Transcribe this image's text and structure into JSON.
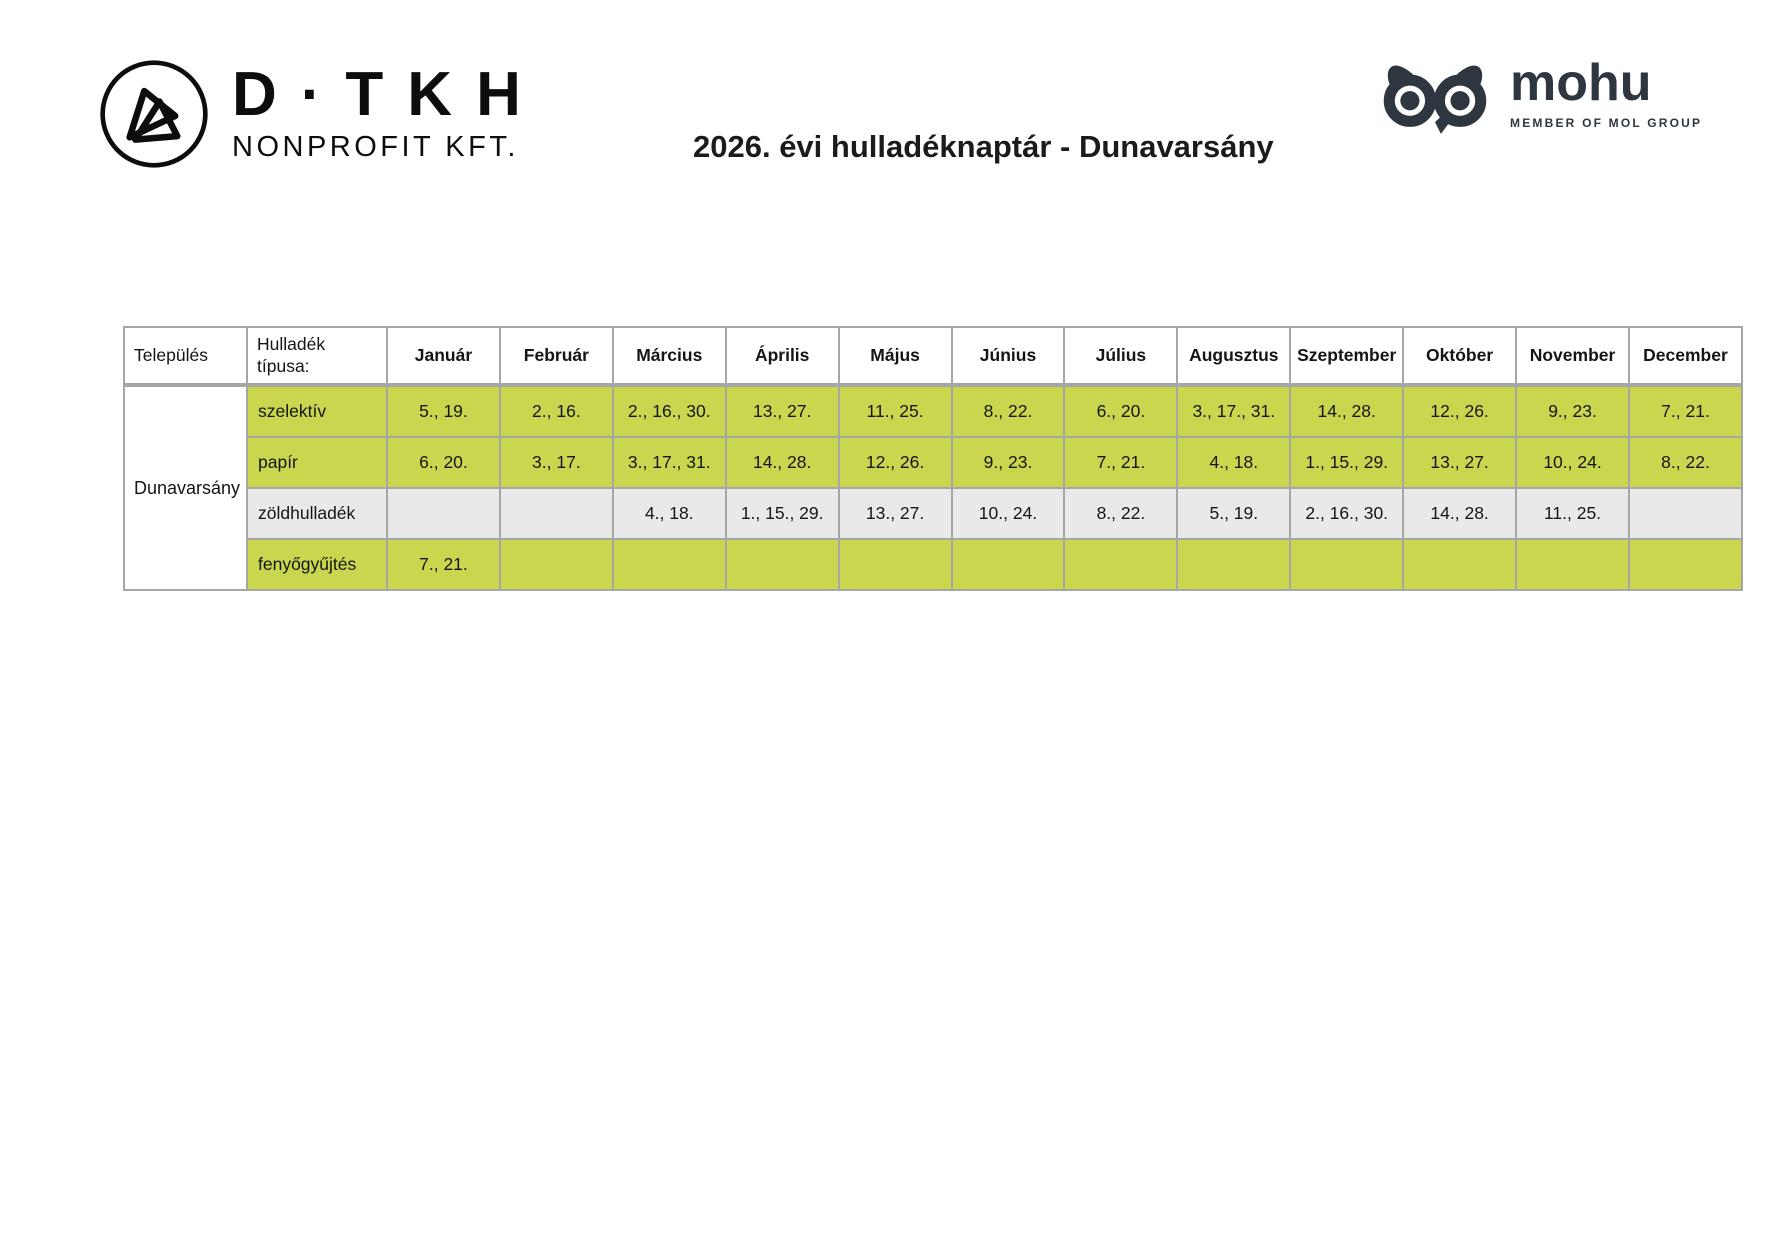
{
  "page": {
    "title": "2026. évi hulladéknaptár - Dunavarsány"
  },
  "branding": {
    "dtkh": {
      "wordmark": "D·TKH",
      "subtitle": "NONPROFIT KFT."
    },
    "mohu": {
      "wordmark": "mohu",
      "tagline": "MEMBER OF MOL GROUP"
    }
  },
  "colors": {
    "accent_green": "#c9d64e",
    "row_gray": "#e9e9e9",
    "grid_border": "#a6a6a6",
    "outer_border": "#8c8c8c",
    "logo_dark": "#2e3640",
    "text": "#151515"
  },
  "table": {
    "settlement_header": "Település",
    "waste_type_header": "Hulladék típusa:",
    "settlement": "Dunavarsány",
    "months": [
      "Január",
      "Február",
      "Március",
      "Április",
      "Május",
      "Június",
      "Július",
      "Augusztus",
      "Szeptember",
      "Október",
      "November",
      "December"
    ],
    "rows": [
      {
        "label": "szelektív",
        "style": "green",
        "values": [
          "5., 19.",
          "2., 16.",
          "2., 16., 30.",
          "13., 27.",
          "11., 25.",
          "8., 22.",
          "6., 20.",
          "3., 17., 31.",
          "14., 28.",
          "12., 26.",
          "9., 23.",
          "7., 21."
        ]
      },
      {
        "label": "papír",
        "style": "green",
        "values": [
          "6., 20.",
          "3., 17.",
          "3., 17., 31.",
          "14., 28.",
          "12., 26.",
          "9., 23.",
          "7., 21.",
          "4., 18.",
          "1., 15., 29.",
          "13., 27.",
          "10., 24.",
          "8., 22."
        ]
      },
      {
        "label": "zöldhulladék",
        "style": "gray",
        "values": [
          "",
          "",
          "4., 18.",
          "1., 15., 29.",
          "13., 27.",
          "10., 24.",
          "8., 22.",
          "5., 19.",
          "2., 16., 30.",
          "14., 28.",
          "11., 25.",
          ""
        ]
      },
      {
        "label": "fenyőgyűjtés",
        "style": "green",
        "values": [
          "7., 21.",
          "",
          "",
          "",
          "",
          "",
          "",
          "",
          "",
          "",
          "",
          ""
        ]
      }
    ]
  }
}
